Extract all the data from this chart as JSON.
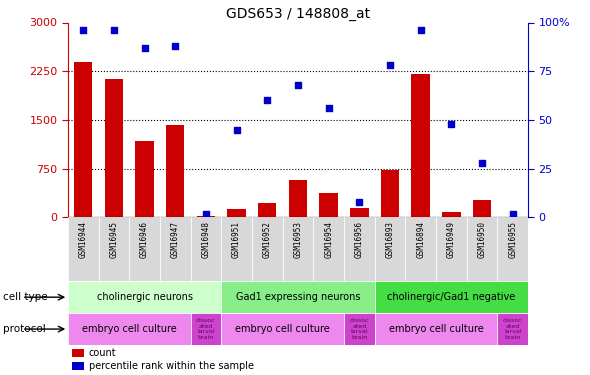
{
  "title": "GDS653 / 148808_at",
  "samples": [
    "GSM16944",
    "GSM16945",
    "GSM16946",
    "GSM16947",
    "GSM16948",
    "GSM16951",
    "GSM16952",
    "GSM16953",
    "GSM16954",
    "GSM16956",
    "GSM16893",
    "GSM16894",
    "GSM16949",
    "GSM16950",
    "GSM16955"
  ],
  "counts": [
    2390,
    2130,
    1180,
    1430,
    30,
    130,
    230,
    570,
    380,
    145,
    730,
    2210,
    90,
    270,
    10
  ],
  "percentile": [
    96,
    96,
    87,
    88,
    2,
    45,
    60,
    68,
    56,
    8,
    78,
    96,
    48,
    28,
    2
  ],
  "ylim_left": [
    0,
    3000
  ],
  "ylim_right": [
    0,
    100
  ],
  "yticks_left": [
    0,
    750,
    1500,
    2250,
    3000
  ],
  "yticks_right": [
    0,
    25,
    50,
    75,
    100
  ],
  "cell_types": [
    {
      "label": "cholinergic neurons",
      "start": 0,
      "end": 5,
      "color": "#ccffcc"
    },
    {
      "label": "Gad1 expressing neurons",
      "start": 5,
      "end": 10,
      "color": "#88ee88"
    },
    {
      "label": "cholinergic/Gad1 negative",
      "start": 10,
      "end": 15,
      "color": "#44dd44"
    }
  ],
  "protocols": [
    {
      "label": "embryo cell culture",
      "start": 0,
      "end": 4,
      "is_embryo": true
    },
    {
      "label": "dissoc\nated\nlarval\nbrain",
      "start": 4,
      "end": 5,
      "is_embryo": false
    },
    {
      "label": "embryo cell culture",
      "start": 5,
      "end": 9,
      "is_embryo": true
    },
    {
      "label": "dissoc\nated\nlarval\nbrain",
      "start": 9,
      "end": 10,
      "is_embryo": false
    },
    {
      "label": "embryo cell culture",
      "start": 10,
      "end": 14,
      "is_embryo": true
    },
    {
      "label": "dissoc\nated\nlarval\nbrain",
      "start": 14,
      "end": 15,
      "is_embryo": false
    }
  ],
  "embryo_color": "#ee88ee",
  "dissoc_color": "#cc44cc",
  "bar_color": "#cc0000",
  "dot_color": "#0000cc",
  "tick_color_left": "#cc0000",
  "tick_color_right": "#0000cc",
  "grid_yticks": [
    750,
    1500,
    2250
  ]
}
